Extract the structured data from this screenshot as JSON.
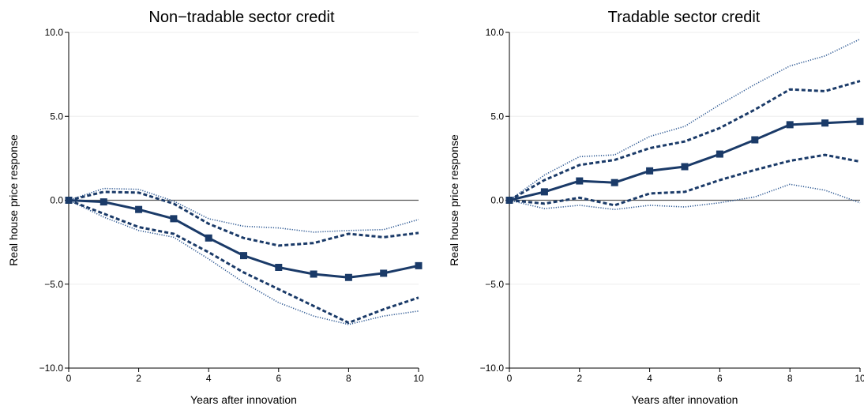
{
  "figure": {
    "panels": [
      {
        "title": "Non−tradable sector credit"
      },
      {
        "title": "Tradable sector credit"
      }
    ]
  },
  "chart_data": [
    {
      "type": "line",
      "title": "Non−tradable sector credit",
      "xlabel": "Years after innovation",
      "ylabel": "Real house price response",
      "xlim": [
        0,
        10
      ],
      "ylim": [
        -10,
        10
      ],
      "xticks": [
        0,
        2,
        4,
        6,
        8,
        10
      ],
      "yticks": [
        -10,
        -5,
        0,
        5,
        10
      ],
      "ytick_labels": [
        "−10.0",
        "−5.0",
        "0.0",
        "5.0",
        "10.0"
      ],
      "grid": true,
      "x": [
        0,
        1,
        2,
        3,
        4,
        5,
        6,
        7,
        8,
        9,
        10
      ],
      "series": [
        {
          "role": "estimate",
          "style": "solid-markers",
          "values": [
            0,
            -0.1,
            -0.55,
            -1.1,
            -2.25,
            -3.3,
            -4.0,
            -4.4,
            -4.6,
            -4.35,
            -3.9
          ]
        },
        {
          "role": "upper-band-inner",
          "style": "dashed",
          "values": [
            0,
            0.5,
            0.45,
            -0.2,
            -1.4,
            -2.25,
            -2.7,
            -2.55,
            -2.0,
            -2.2,
            -1.95
          ]
        },
        {
          "role": "lower-band-inner",
          "style": "dashed",
          "values": [
            0,
            -0.8,
            -1.6,
            -2.0,
            -3.1,
            -4.3,
            -5.3,
            -6.3,
            -7.3,
            -6.5,
            -5.8
          ]
        },
        {
          "role": "upper-band-outer",
          "style": "dotted",
          "values": [
            0,
            0.7,
            0.65,
            -0.05,
            -1.1,
            -1.55,
            -1.65,
            -1.9,
            -1.8,
            -1.75,
            -1.15
          ]
        },
        {
          "role": "lower-band-outer",
          "style": "dotted",
          "values": [
            0,
            -1.0,
            -1.8,
            -2.2,
            -3.5,
            -4.9,
            -6.1,
            -6.9,
            -7.4,
            -6.9,
            -6.6
          ]
        }
      ]
    },
    {
      "type": "line",
      "title": "Tradable sector credit",
      "xlabel": "Years after innovation",
      "ylabel": "Real house price response",
      "xlim": [
        0,
        10
      ],
      "ylim": [
        -10,
        10
      ],
      "xticks": [
        0,
        2,
        4,
        6,
        8,
        10
      ],
      "yticks": [
        -10,
        -5,
        0,
        5,
        10
      ],
      "ytick_labels": [
        "−10.0",
        "−5.0",
        "0.0",
        "5.0",
        "10.0"
      ],
      "grid": true,
      "x": [
        0,
        1,
        2,
        3,
        4,
        5,
        6,
        7,
        8,
        9,
        10
      ],
      "series": [
        {
          "role": "estimate",
          "style": "solid-markers",
          "values": [
            0,
            0.5,
            1.15,
            1.05,
            1.75,
            2.0,
            2.75,
            3.6,
            4.5,
            4.6,
            4.7
          ]
        },
        {
          "role": "upper-band-inner",
          "style": "dashed",
          "values": [
            0,
            1.2,
            2.1,
            2.4,
            3.1,
            3.5,
            4.3,
            5.4,
            6.6,
            6.5,
            7.1
          ]
        },
        {
          "role": "lower-band-inner",
          "style": "dashed",
          "values": [
            0,
            -0.2,
            0.15,
            -0.3,
            0.4,
            0.5,
            1.2,
            1.8,
            2.35,
            2.7,
            2.3
          ]
        },
        {
          "role": "upper-band-outer",
          "style": "dotted",
          "values": [
            0,
            1.5,
            2.6,
            2.7,
            3.8,
            4.4,
            5.7,
            6.9,
            8.0,
            8.6,
            9.6
          ]
        },
        {
          "role": "lower-band-outer",
          "style": "dotted",
          "values": [
            0,
            -0.5,
            -0.3,
            -0.55,
            -0.3,
            -0.4,
            -0.15,
            0.2,
            0.95,
            0.6,
            -0.15
          ]
        }
      ]
    }
  ],
  "colors": {
    "line": "#1a3a68",
    "zero_line": "#555555",
    "grid": "#eeeeee",
    "axis": "#000000"
  }
}
